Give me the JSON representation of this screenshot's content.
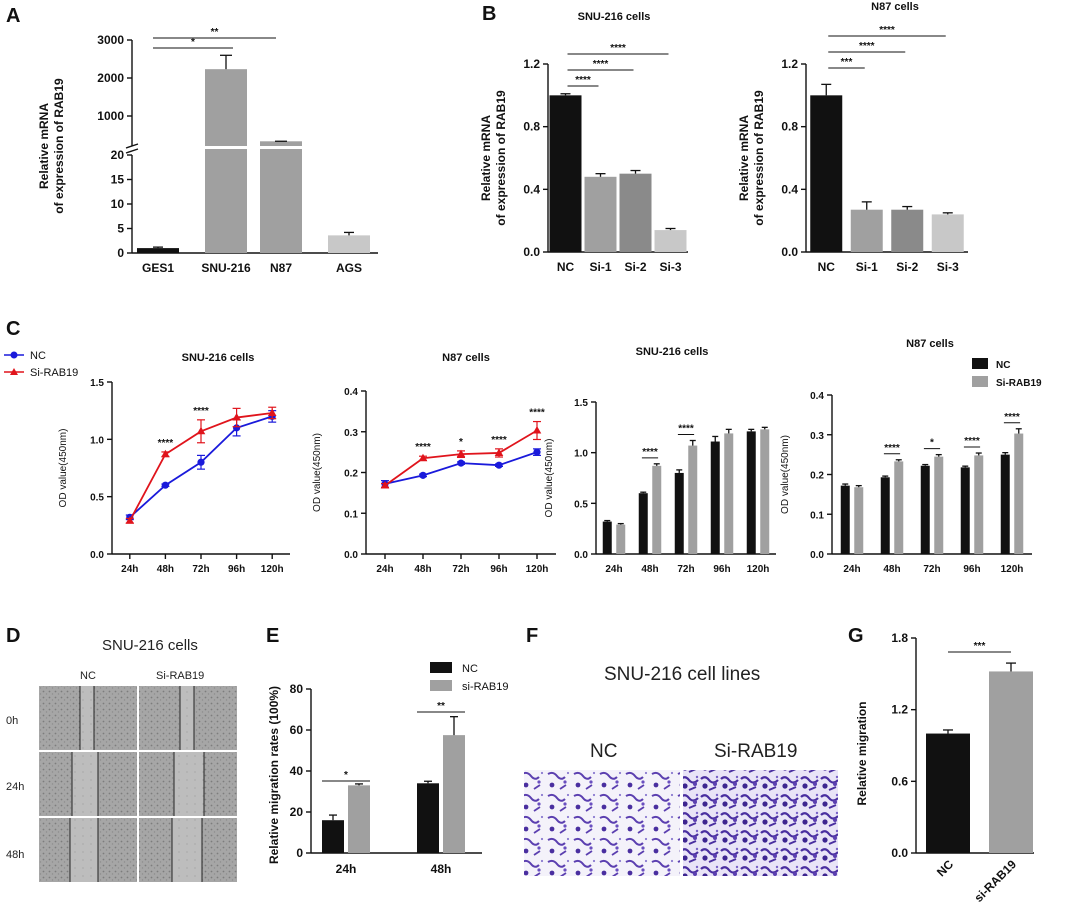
{
  "panel_labels": {
    "A": "A",
    "B": "B",
    "C": "C",
    "D": "D",
    "E": "E",
    "F": "F",
    "G": "G"
  },
  "colors": {
    "black": "#111111",
    "gray": "#a0a0a0",
    "gray_dark": "#8a8a8a",
    "gray_light": "#c8c8c8",
    "nc_blue": "#1a1adb",
    "si_red": "#e0141c",
    "stain": "#5b3fb0"
  },
  "chart_data": [
    {
      "id": "A",
      "type": "bar",
      "broken_axis": true,
      "categories": [
        "GES1",
        "SNU-216",
        "N87",
        "AGS"
      ],
      "values": [
        1,
        2100,
        20.5,
        3.6
      ],
      "errors": [
        0.2,
        400,
        1.2,
        0.6
      ],
      "colors": [
        "#111111",
        "#a0a0a0",
        "#a0a0a0",
        "#c8c8c8"
      ],
      "ylabel": "Relative mRNA of expression of RAB19",
      "yticks_lower": [
        "0",
        "5",
        "10",
        "15",
        "20"
      ],
      "yticks_upper": [
        "1000",
        "2000",
        "3000"
      ],
      "ylim_lower": [
        0,
        20
      ],
      "ylim_upper": [
        0,
        3000
      ],
      "significance": [
        {
          "from": 0,
          "to": 1,
          "label": "*"
        },
        {
          "from": 0,
          "to": 2,
          "label": "**"
        }
      ]
    },
    {
      "id": "B1",
      "type": "bar",
      "title": "SNU-216 cells",
      "categories": [
        "NC",
        "Si-1",
        "Si-2",
        "Si-3"
      ],
      "values": [
        1.0,
        0.48,
        0.5,
        0.14
      ],
      "errors": [
        0.01,
        0.02,
        0.02,
        0.01
      ],
      "colors": [
        "#111111",
        "#a0a0a0",
        "#8a8a8a",
        "#c8c8c8"
      ],
      "ylabel": "Relative mRNA of expression of RAB19",
      "yticks": [
        "0.0",
        "0.4",
        "0.8",
        "1.2"
      ],
      "ylim": [
        0,
        1.2
      ],
      "significance": [
        {
          "from": 0,
          "to": 1,
          "label": "****"
        },
        {
          "from": 0,
          "to": 2,
          "label": "****"
        },
        {
          "from": 0,
          "to": 3,
          "label": "****"
        }
      ]
    },
    {
      "id": "B2",
      "type": "bar",
      "title": "N87 cells",
      "categories": [
        "NC",
        "Si-1",
        "Si-2",
        "Si-3"
      ],
      "values": [
        1.0,
        0.27,
        0.27,
        0.24
      ],
      "errors": [
        0.07,
        0.05,
        0.02,
        0.01
      ],
      "colors": [
        "#111111",
        "#a0a0a0",
        "#8a8a8a",
        "#c8c8c8"
      ],
      "ylabel": "Relative mRNA of expression of RAB19",
      "yticks": [
        "0.0",
        "0.4",
        "0.8",
        "1.2"
      ],
      "ylim": [
        0,
        1.2
      ],
      "significance": [
        {
          "from": 0,
          "to": 1,
          "label": "***"
        },
        {
          "from": 0,
          "to": 2,
          "label": "****"
        },
        {
          "from": 0,
          "to": 3,
          "label": "****"
        }
      ]
    },
    {
      "id": "C1",
      "type": "line",
      "title": "SNU-216 cells",
      "x": [
        "24h",
        "48h",
        "72h",
        "96h",
        "120h"
      ],
      "series": [
        {
          "name": "NC",
          "values": [
            0.32,
            0.6,
            0.8,
            1.1,
            1.2
          ],
          "errors": [
            0.02,
            0.01,
            0.06,
            0.07,
            0.05
          ],
          "color": "#1a1adb",
          "marker": "circle"
        },
        {
          "name": "Si-RAB19",
          "values": [
            0.29,
            0.87,
            1.07,
            1.19,
            1.23
          ],
          "errors": [
            0.02,
            0.02,
            0.1,
            0.08,
            0.05
          ],
          "color": "#e0141c",
          "marker": "triangle"
        }
      ],
      "ylabel": "OD value(450nm)",
      "yticks": [
        "0.0",
        "0.5",
        "1.0",
        "1.5"
      ],
      "ylim": [
        0,
        1.5
      ],
      "significance": [
        {
          "index": 1,
          "label": "****"
        },
        {
          "index": 2,
          "label": "****"
        }
      ]
    },
    {
      "id": "C2",
      "type": "line",
      "title": "N87 cells",
      "x": [
        "24h",
        "48h",
        "72h",
        "96h",
        "120h"
      ],
      "series": [
        {
          "name": "NC",
          "values": [
            0.172,
            0.193,
            0.223,
            0.218,
            0.25
          ],
          "errors": [
            0.008,
            0.003,
            0.003,
            0.003,
            0.008
          ],
          "color": "#1a1adb",
          "marker": "circle"
        },
        {
          "name": "Si-RAB19",
          "values": [
            0.168,
            0.235,
            0.245,
            0.248,
            0.303
          ],
          "errors": [
            0.005,
            0.005,
            0.008,
            0.01,
            0.022
          ],
          "color": "#e0141c",
          "marker": "triangle"
        }
      ],
      "ylabel": "OD value(450nm)",
      "yticks": [
        "0.0",
        "0.1",
        "0.2",
        "0.3",
        "0.4"
      ],
      "ylim": [
        0,
        0.4
      ],
      "significance": [
        {
          "index": 1,
          "label": "****"
        },
        {
          "index": 2,
          "label": "*"
        },
        {
          "index": 3,
          "label": "****"
        },
        {
          "index": 4,
          "label": "****"
        }
      ]
    },
    {
      "id": "C3",
      "type": "bar",
      "title": "SNU-216 cells",
      "categories": [
        "24h",
        "48h",
        "72h",
        "96h",
        "120h"
      ],
      "series": [
        {
          "name": "NC",
          "values": [
            0.32,
            0.6,
            0.8,
            1.11,
            1.21
          ],
          "errors": [
            0.01,
            0.01,
            0.03,
            0.05,
            0.02
          ],
          "color": "#111111"
        },
        {
          "name": "Si-RAB19",
          "values": [
            0.29,
            0.87,
            1.07,
            1.19,
            1.23
          ],
          "errors": [
            0.01,
            0.02,
            0.05,
            0.04,
            0.02
          ],
          "color": "#a0a0a0"
        }
      ],
      "ylabel": "OD value(450nm)",
      "yticks": [
        "0.0",
        "0.5",
        "1.0",
        "1.5"
      ],
      "ylim": [
        0,
        1.5
      ],
      "significance": [
        {
          "index": 1,
          "label": "****"
        },
        {
          "index": 2,
          "label": "****"
        }
      ]
    },
    {
      "id": "C4",
      "type": "bar",
      "title": "N87 cells",
      "categories": [
        "24h",
        "48h",
        "72h",
        "96h",
        "120h"
      ],
      "series": [
        {
          "name": "NC",
          "values": [
            0.172,
            0.193,
            0.222,
            0.218,
            0.25
          ],
          "errors": [
            0.004,
            0.003,
            0.003,
            0.003,
            0.005
          ],
          "color": "#111111"
        },
        {
          "name": "Si-RAB19",
          "values": [
            0.168,
            0.233,
            0.245,
            0.248,
            0.303
          ],
          "errors": [
            0.004,
            0.004,
            0.005,
            0.006,
            0.012
          ],
          "color": "#a0a0a0"
        }
      ],
      "ylabel": "OD value(450nm)",
      "yticks": [
        "0.0",
        "0.1",
        "0.2",
        "0.3",
        "0.4"
      ],
      "ylim": [
        0,
        0.4
      ],
      "significance": [
        {
          "index": 1,
          "label": "****"
        },
        {
          "index": 2,
          "label": "*"
        },
        {
          "index": 3,
          "label": "****"
        },
        {
          "index": 4,
          "label": "****"
        }
      ],
      "legend": [
        "NC",
        "Si-RAB19"
      ]
    },
    {
      "id": "E",
      "type": "bar",
      "categories": [
        "24h",
        "48h"
      ],
      "series": [
        {
          "name": "NC",
          "values": [
            16,
            34
          ],
          "errors": [
            2.5,
            1
          ],
          "color": "#111111"
        },
        {
          "name": "si-RAB19",
          "values": [
            33,
            57.5
          ],
          "errors": [
            0.7,
            9
          ],
          "color": "#a0a0a0"
        }
      ],
      "ylabel": "Relative migration rates (100%)",
      "yticks": [
        "0",
        "20",
        "40",
        "60",
        "80"
      ],
      "ylim": [
        0,
        80
      ],
      "significance": [
        {
          "index": 0,
          "label": "*"
        },
        {
          "index": 1,
          "label": "**"
        }
      ],
      "legend": [
        "NC",
        "si-RAB19"
      ]
    },
    {
      "id": "G",
      "type": "bar",
      "categories": [
        "NC",
        "si-RAB19"
      ],
      "values": [
        1.0,
        1.52
      ],
      "errors": [
        0.03,
        0.07
      ],
      "colors": [
        "#111111",
        "#a0a0a0"
      ],
      "ylabel": "Relative migration",
      "yticks": [
        "0.0",
        "0.6",
        "1.2",
        "1.8"
      ],
      "ylim": [
        0,
        1.8
      ],
      "significance": [
        {
          "from": 0,
          "to": 1,
          "label": "***"
        }
      ]
    }
  ],
  "C_legend": {
    "nc": "NC",
    "si": "Si-RAB19"
  },
  "D": {
    "title": "SNU-216 cells",
    "col_nc": "NC",
    "col_si": "Si-RAB19",
    "rows": [
      "0h",
      "24h",
      "48h"
    ]
  },
  "F": {
    "title": "SNU-216 cell lines",
    "nc": "NC",
    "si": "Si-RAB19"
  }
}
